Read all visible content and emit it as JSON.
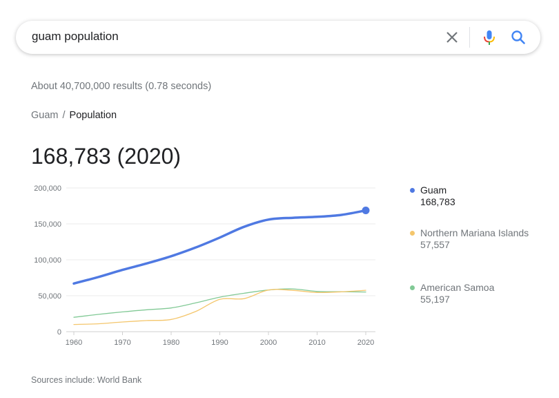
{
  "search": {
    "query": "guam population",
    "clear_icon": "close-icon",
    "mic_icon": "microphone-icon",
    "search_icon": "search-icon"
  },
  "result_stats": "About 40,700,000 results (0.78 seconds)",
  "breadcrumb": {
    "parent": "Guam",
    "separator": "/",
    "current": "Population"
  },
  "headline_value": "168,783 (2020)",
  "sources": "Sources include: World Bank",
  "colors": {
    "guam": "#4f79e2",
    "nmi": "#f4c66c",
    "samoa": "#81c995",
    "axis_text": "#70757a",
    "grid": "#ebebeb"
  },
  "chart_data": {
    "type": "line",
    "x": [
      1960,
      1965,
      1970,
      1975,
      1980,
      1985,
      1990,
      1995,
      2000,
      2005,
      2010,
      2015,
      2020
    ],
    "x_ticks": [
      1960,
      1970,
      1980,
      1990,
      2000,
      2010,
      2020
    ],
    "y_ticks": [
      0,
      50000,
      100000,
      150000,
      200000
    ],
    "y_tick_labels": [
      "0",
      "50,000",
      "100,000",
      "150,000",
      "200,000"
    ],
    "xlim": [
      1960,
      2020
    ],
    "ylim": [
      0,
      200000
    ],
    "grid": true,
    "legend_position": "right",
    "series": [
      {
        "key": "guam",
        "name": "Guam",
        "value_label": "168,783",
        "values": [
          67000,
          76000,
          86000,
          95000,
          105000,
          117000,
          131000,
          146000,
          156000,
          158500,
          159800,
          162500,
          168783
        ],
        "highlight_last": true
      },
      {
        "key": "nmi",
        "name": "Northern Mariana Islands",
        "value_label": "57,557",
        "values": [
          10000,
          11000,
          13500,
          15500,
          17000,
          28000,
          45000,
          46000,
          58000,
          57500,
          54500,
          55500,
          57557
        ]
      },
      {
        "key": "samoa",
        "name": "American Samoa",
        "value_label": "55,197",
        "values": [
          20000,
          24000,
          27500,
          30500,
          33000,
          40000,
          48000,
          53500,
          58000,
          59500,
          56000,
          55600,
          55197
        ]
      }
    ]
  }
}
